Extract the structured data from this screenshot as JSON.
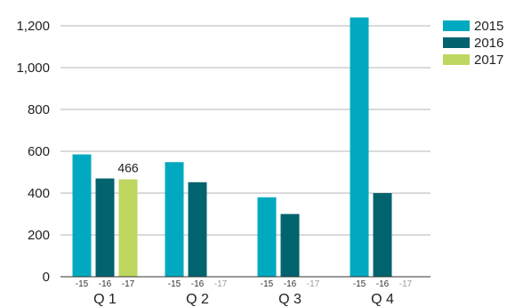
{
  "chart_data": {
    "type": "bar",
    "categories": [
      "Q 1",
      "Q 2",
      "Q 3",
      "Q 4"
    ],
    "sub_labels": [
      "-15",
      "-16",
      "-17"
    ],
    "series": [
      {
        "name": "2015",
        "color": "#00a9bf",
        "values": [
          585,
          548,
          380,
          1285
        ]
      },
      {
        "name": "2016",
        "color": "#00636e",
        "values": [
          470,
          452,
          300,
          400
        ]
      },
      {
        "name": "2017",
        "color": "#bed760",
        "values": [
          466,
          null,
          null,
          null
        ]
      }
    ],
    "data_labels": [
      {
        "series": 2,
        "category": 0,
        "text": "466"
      }
    ],
    "y_ticks": [
      {
        "value": 0,
        "label": "0"
      },
      {
        "value": 200,
        "label": "200"
      },
      {
        "value": 400,
        "label": "400"
      },
      {
        "value": 600,
        "label": "600"
      },
      {
        "value": 800,
        "label": "800"
      },
      {
        "value": 1000,
        "label": "1,000"
      },
      {
        "value": 1200,
        "label": "1,200"
      }
    ],
    "ylim": [
      0,
      1300
    ],
    "grid": true,
    "legend_position": "top-right",
    "title": "",
    "xlabel": "",
    "ylabel": ""
  }
}
